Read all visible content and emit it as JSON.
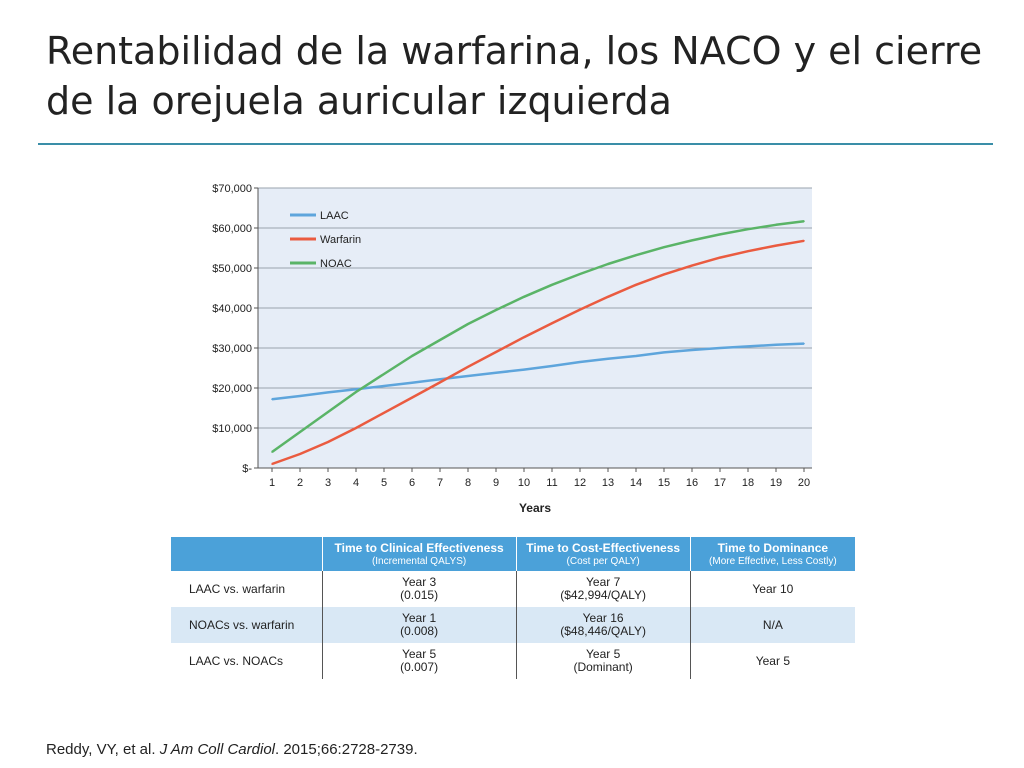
{
  "slide": {
    "title": "Rentabilidad de la warfarina, los NACO y el cierre de la orejuela auricular izquierda"
  },
  "chart_data": {
    "type": "line",
    "title": "",
    "xlabel": "Years",
    "ylabel": "",
    "x": [
      1,
      2,
      3,
      4,
      5,
      6,
      7,
      8,
      9,
      10,
      11,
      12,
      13,
      14,
      15,
      16,
      17,
      18,
      19,
      20
    ],
    "ylim": [
      0,
      70000
    ],
    "yticks": [
      0,
      10000,
      20000,
      30000,
      40000,
      50000,
      60000,
      70000
    ],
    "ytick_labels": [
      "$-",
      "$10,000",
      "$20,000",
      "$30,000",
      "$40,000",
      "$50,000",
      "$60,000",
      "$70,000"
    ],
    "grid": true,
    "legend_position": "top-left",
    "background_color": "#e6edf7",
    "series": [
      {
        "name": "LAAC",
        "color": "#5ea5dc",
        "values": [
          17200,
          18000,
          18900,
          19700,
          20500,
          21300,
          22200,
          23000,
          23800,
          24600,
          25500,
          26500,
          27300,
          28000,
          28900,
          29500,
          30000,
          30400,
          30800,
          31100
        ]
      },
      {
        "name": "Warfarin",
        "color": "#ea5b40",
        "values": [
          1000,
          3500,
          6500,
          10000,
          13800,
          17600,
          21400,
          25300,
          29000,
          32700,
          36200,
          39600,
          42800,
          45800,
          48400,
          50600,
          52600,
          54200,
          55600,
          56800
        ]
      },
      {
        "name": "NOAC",
        "color": "#5ab467",
        "values": [
          4000,
          9000,
          14000,
          19000,
          23500,
          28000,
          32000,
          36000,
          39500,
          42800,
          45800,
          48500,
          51000,
          53200,
          55200,
          56900,
          58400,
          59700,
          60800,
          61700
        ]
      }
    ]
  },
  "table": {
    "header_color": "#4ba1d9",
    "columns": [
      {
        "title": "",
        "sub": ""
      },
      {
        "title": "Time to Clinical Effectiveness",
        "sub": "(Incremental QALYS)"
      },
      {
        "title": "Time to Cost-Effectiveness",
        "sub": "(Cost per QALY)"
      },
      {
        "title": "Time to Dominance",
        "sub": "(More Effective, Less Costly)"
      }
    ],
    "rows": [
      {
        "label": "LAAC vs. warfarin",
        "c1": {
          "l1": "Year 3",
          "l2": "(0.015)"
        },
        "c2": {
          "l1": "Year 7",
          "l2": "($42,994/QALY)"
        },
        "c3": {
          "l1": "Year 10",
          "l2": ""
        }
      },
      {
        "label": "NOACs vs. warfarin",
        "c1": {
          "l1": "Year 1",
          "l2": "(0.008)"
        },
        "c2": {
          "l1": "Year 16",
          "l2": "($48,446/QALY)"
        },
        "c3": {
          "l1": "N/A",
          "l2": ""
        }
      },
      {
        "label": "LAAC vs. NOACs",
        "c1": {
          "l1": "Year 5",
          "l2": "(0.007)"
        },
        "c2": {
          "l1": "Year 5",
          "l2": "(Dominant)"
        },
        "c3": {
          "l1": "Year 5",
          "l2": ""
        }
      }
    ]
  },
  "citation": {
    "authors": "Reddy, VY, et al. ",
    "journal": "J Am Coll Cardiol",
    "details": ". 2015;66:2728-2739."
  }
}
